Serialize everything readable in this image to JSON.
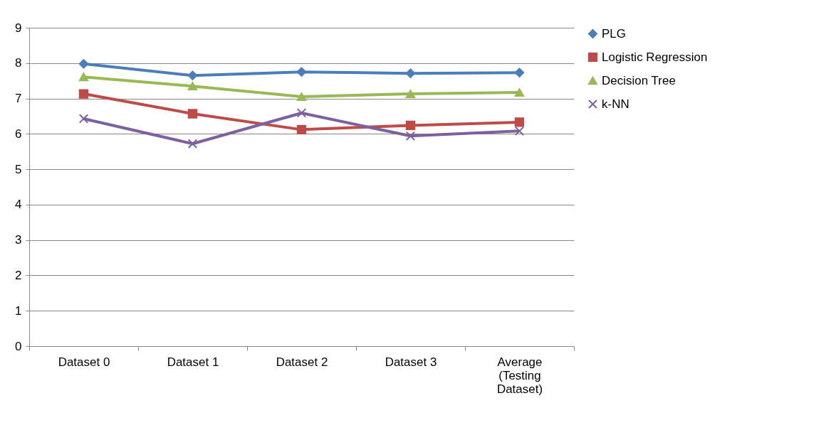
{
  "chart_data": {
    "type": "line",
    "categories": [
      "Dataset 0",
      "Dataset 1",
      "Dataset 2",
      "Dataset 3",
      "Average (Testing Dataset)"
    ],
    "series": [
      {
        "name": "PLG",
        "color": "#4a7ebb",
        "marker": "diamond",
        "values": [
          7.98,
          7.65,
          7.75,
          7.71,
          7.73
        ]
      },
      {
        "name": "Logistic Regression",
        "color": "#be4b48",
        "marker": "square",
        "values": [
          7.13,
          6.57,
          6.12,
          6.24,
          6.33
        ]
      },
      {
        "name": "Decision Tree",
        "color": "#98b954",
        "marker": "triangle",
        "values": [
          7.61,
          7.35,
          7.05,
          7.13,
          7.17
        ]
      },
      {
        "name": "k-NN",
        "color": "#7d60a0",
        "marker": "cross",
        "values": [
          6.43,
          5.72,
          6.59,
          5.94,
          6.08
        ]
      }
    ],
    "ylim": [
      0,
      9
    ],
    "yticks": [
      0,
      1,
      2,
      3,
      4,
      5,
      6,
      7,
      8,
      9
    ],
    "grid": "y",
    "legend": "right"
  }
}
